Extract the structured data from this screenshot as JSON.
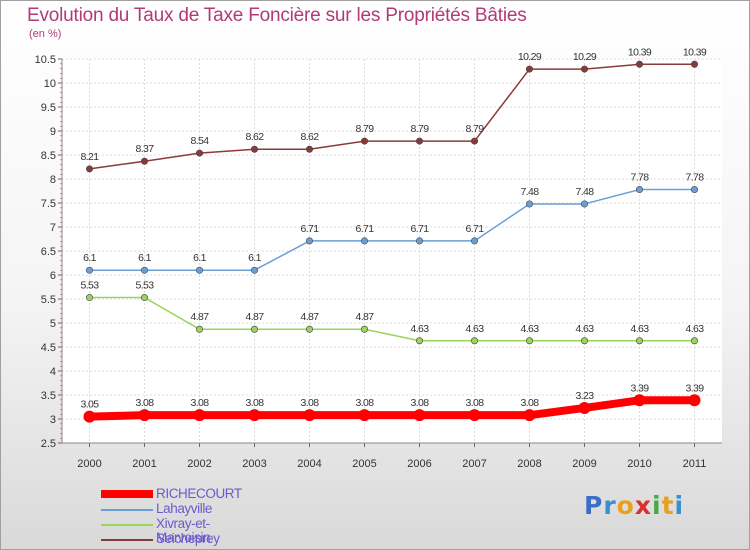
{
  "title": "Evolution du Taux de Taxe Foncière sur les Propriétés Bâties",
  "unit": "(en %)",
  "logo": {
    "text": "Proxiti",
    "letters": [
      "P",
      "r",
      "o",
      "x",
      "i",
      "t",
      "i"
    ],
    "colors": [
      "#3b6fc6",
      "#3b8ed0",
      "#e8a020",
      "#d93030",
      "#4aa84a",
      "#e8a020",
      "#3b8ed0"
    ]
  },
  "chart_data": {
    "type": "line",
    "title": "Evolution du Taux de Taxe Foncière sur les Propriétés Bâties",
    "ylabel": "(en %)",
    "xlabel": "",
    "ylim": [
      2.5,
      10.5
    ],
    "yticks": [
      "2.5",
      "3",
      "3.5",
      "4",
      "4.5",
      "5",
      "5.5",
      "6",
      "6.5",
      "7",
      "7.5",
      "8",
      "8.5",
      "9",
      "9.5",
      "10",
      "10.5"
    ],
    "x": [
      "2000",
      "2001",
      "2002",
      "2003",
      "2004",
      "2005",
      "2006",
      "2007",
      "2008",
      "2009",
      "2010",
      "2011"
    ],
    "grid": true,
    "legend": "bottom-left",
    "series": [
      {
        "name": "RICHECOURT",
        "color": "#ff0000",
        "width": 8,
        "values": [
          3.05,
          3.08,
          3.08,
          3.08,
          3.08,
          3.08,
          3.08,
          3.08,
          3.08,
          3.23,
          3.39,
          3.39
        ],
        "labels": [
          "3.05",
          "3.08",
          "3.08",
          "3.08",
          "3.08",
          "3.08",
          "3.08",
          "3.08",
          "3.08",
          "3.23",
          "3.39",
          "3.39"
        ]
      },
      {
        "name": "Lahayville",
        "color": "#6a9fd3",
        "width": 1.5,
        "values": [
          6.1,
          6.1,
          6.1,
          6.1,
          6.71,
          6.71,
          6.71,
          6.71,
          7.48,
          7.48,
          7.78,
          7.78
        ],
        "labels": [
          "6.1",
          "6.1",
          "6.1",
          "6.1",
          "6.71",
          "6.71",
          "6.71",
          "6.71",
          "7.48",
          "7.48",
          "7.78",
          "7.78"
        ]
      },
      {
        "name": "Xivray-et-Marvoisin",
        "color": "#9ad45a",
        "width": 1.5,
        "values": [
          5.53,
          5.53,
          4.87,
          4.87,
          4.87,
          4.87,
          4.63,
          4.63,
          4.63,
          4.63,
          4.63,
          4.63
        ],
        "labels": [
          "5.53",
          "5.53",
          "4.87",
          "4.87",
          "4.87",
          "4.87",
          "4.63",
          "4.63",
          "4.63",
          "4.63",
          "4.63",
          "4.63"
        ]
      },
      {
        "name": "Seicheprey",
        "color": "#8b3a3a",
        "width": 1.5,
        "values": [
          8.21,
          8.37,
          8.54,
          8.62,
          8.62,
          8.79,
          8.79,
          8.79,
          10.29,
          10.29,
          10.39,
          10.39
        ],
        "labels": [
          "8.21",
          "8.37",
          "8.54",
          "8.62",
          "8.62",
          "8.79",
          "8.79",
          "8.79",
          "10.29",
          "10.29",
          "10.39",
          "10.39"
        ]
      }
    ]
  }
}
